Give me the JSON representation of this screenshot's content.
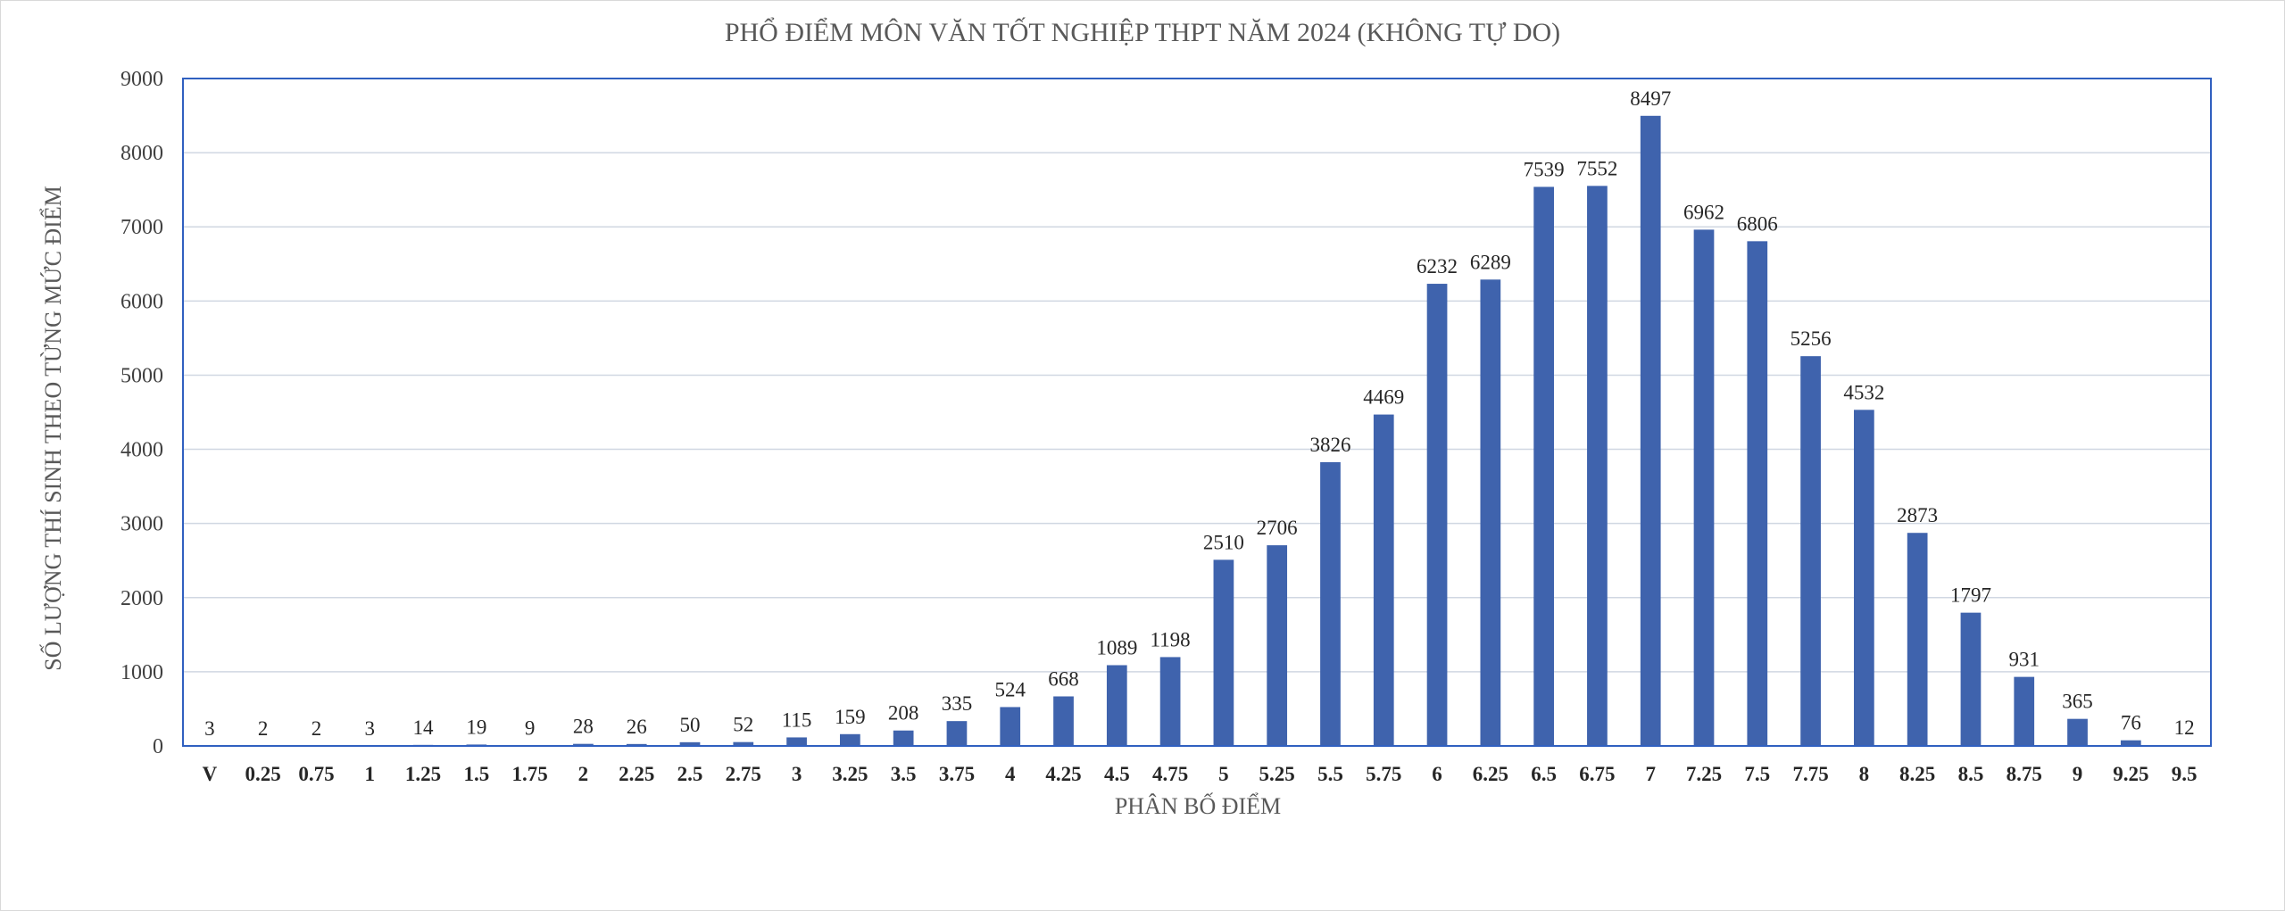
{
  "colors": {
    "bar": "#3f63ad",
    "plot_border": "#3060c0",
    "grid": "#d0d7e2",
    "text": "#595959"
  },
  "chart_data": {
    "type": "bar",
    "title": "PHỔ ĐIỂM MÔN VĂN TỐT NGHIỆP THPT NĂM 2024 (KHÔNG TỰ DO)",
    "xlabel": "PHÂN BỐ ĐIỂM",
    "ylabel": "SỐ LƯỢNG THÍ SINH THEO TỪNG MỨC ĐIỂM",
    "ylim": [
      0,
      9000
    ],
    "yticks": [
      0,
      1000,
      2000,
      3000,
      4000,
      5000,
      6000,
      7000,
      8000,
      9000
    ],
    "grid": true,
    "data_labels": true,
    "categories": [
      "V",
      "0.25",
      "0.75",
      "1",
      "1.25",
      "1.5",
      "1.75",
      "2",
      "2.25",
      "2.5",
      "2.75",
      "3",
      "3.25",
      "3.5",
      "3.75",
      "4",
      "4.25",
      "4.5",
      "4.75",
      "5",
      "5.25",
      "5.5",
      "5.75",
      "6",
      "6.25",
      "6.5",
      "6.75",
      "7",
      "7.25",
      "7.5",
      "7.75",
      "8",
      "8.25",
      "8.5",
      "8.75",
      "9",
      "9.25",
      "9.5"
    ],
    "values": [
      3,
      2,
      2,
      3,
      14,
      19,
      9,
      28,
      26,
      50,
      52,
      115,
      159,
      208,
      335,
      524,
      668,
      1089,
      1198,
      2510,
      2706,
      3826,
      4469,
      6232,
      6289,
      7539,
      7552,
      8497,
      6962,
      6806,
      5256,
      4532,
      2873,
      1797,
      931,
      365,
      76,
      12
    ]
  }
}
